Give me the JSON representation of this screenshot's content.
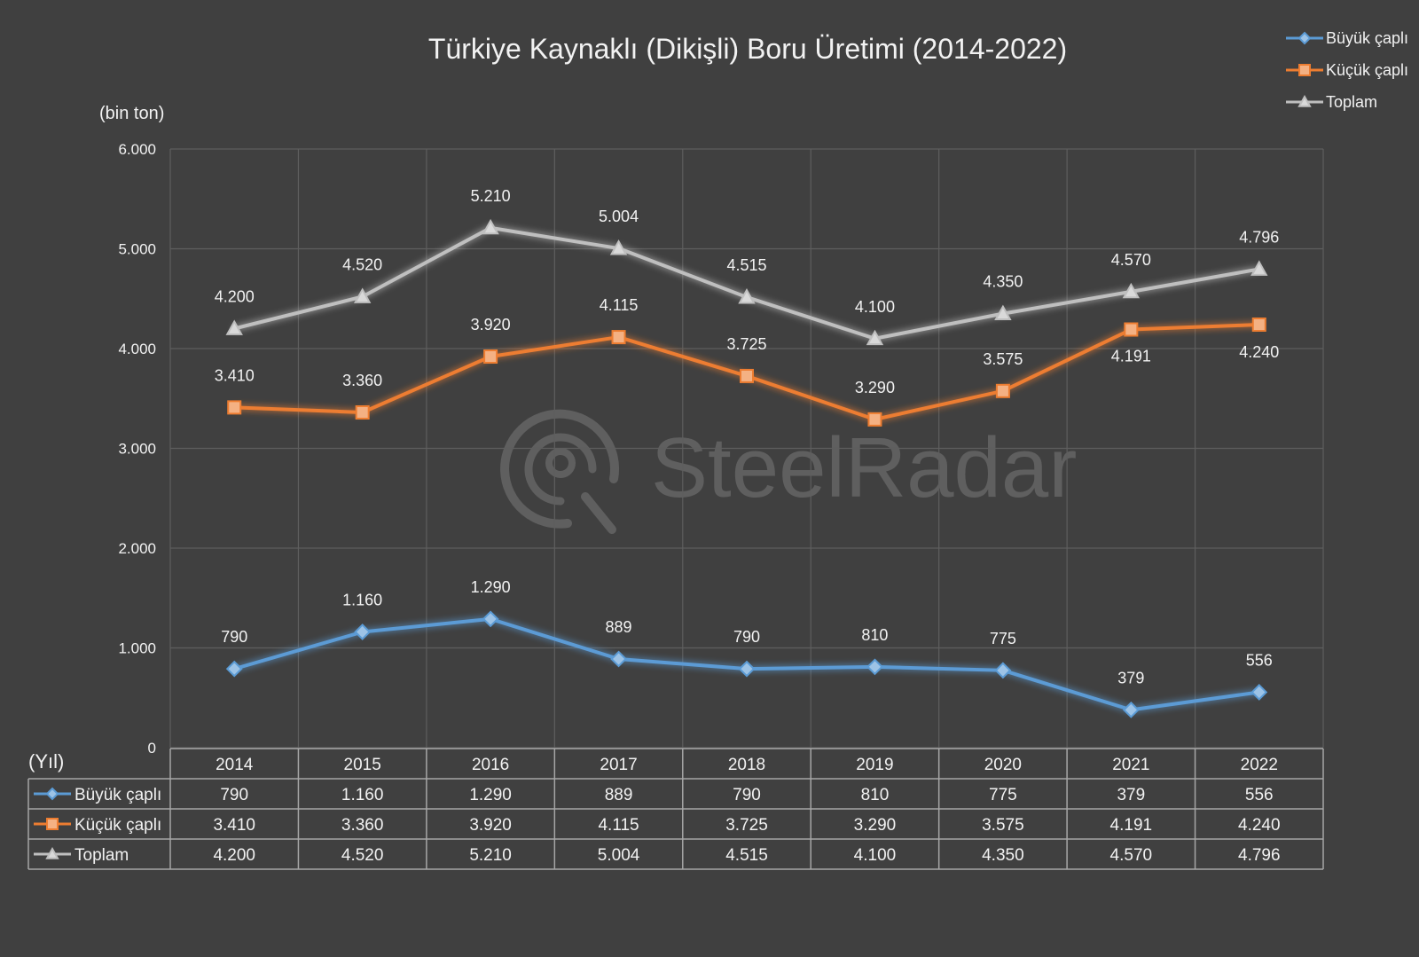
{
  "chart_data": {
    "type": "line",
    "title": "Türkiye Kaynaklı (Dikişli) Boru Üretimi (2014-2022)",
    "unit_label": "(bin ton)",
    "table_header_label": "(Yıl)",
    "watermark": "SteelRadar",
    "ylim": [
      0,
      6000
    ],
    "y_ticks": [
      "0",
      "1.000",
      "2.000",
      "3.000",
      "4.000",
      "5.000",
      "6.000"
    ],
    "categories": [
      "2014",
      "2015",
      "2016",
      "2017",
      "2018",
      "2019",
      "2020",
      "2021",
      "2022"
    ],
    "grid": true,
    "legend_position": "top-right",
    "series": [
      {
        "name": "Büyük çaplı",
        "marker": "diamond",
        "color": "#5b9bd5",
        "values": [
          790,
          1160,
          1290,
          889,
          790,
          810,
          775,
          379,
          556
        ],
        "labels": [
          "790",
          "1.160",
          "1.290",
          "889",
          "790",
          "810",
          "775",
          "379",
          "556"
        ]
      },
      {
        "name": "Küçük çaplı",
        "marker": "square",
        "color": "#ed7d31",
        "values": [
          3410,
          3360,
          3920,
          4115,
          3725,
          3290,
          3575,
          4191,
          4240
        ],
        "labels": [
          "3.410",
          "3.360",
          "3.920",
          "4.115",
          "3.725",
          "3.290",
          "3.575",
          "4.191",
          "4.240"
        ]
      },
      {
        "name": "Toplam",
        "marker": "triangle",
        "color": "#bfbfbf",
        "values": [
          4200,
          4520,
          5210,
          5004,
          4515,
          4100,
          4350,
          4570,
          4796
        ],
        "labels": [
          "4.200",
          "4.520",
          "5.210",
          "5.004",
          "4.515",
          "4.100",
          "4.350",
          "4.570",
          "4.796"
        ]
      }
    ]
  },
  "colors": {
    "background": "#404040",
    "grid": "#5e5e5e",
    "text": "#f2f2f2",
    "table_border": "#a6a6a6"
  }
}
